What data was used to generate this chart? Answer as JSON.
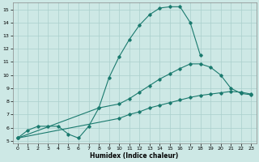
{
  "xlabel": "Humidex (Indice chaleur)",
  "bg_color": "#cde8e5",
  "grid_color": "#aacfcc",
  "line_color": "#1a7a6e",
  "xlim": [
    -0.5,
    23.5
  ],
  "ylim": [
    4.8,
    15.5
  ],
  "xticks": [
    0,
    1,
    2,
    3,
    4,
    5,
    6,
    7,
    8,
    9,
    10,
    11,
    12,
    13,
    14,
    15,
    16,
    17,
    18,
    19,
    20,
    21,
    22,
    23
  ],
  "yticks": [
    5,
    6,
    7,
    8,
    9,
    10,
    11,
    12,
    13,
    14,
    15
  ],
  "line1_x": [
    0,
    1,
    2,
    3,
    4,
    5,
    6,
    7,
    8,
    9,
    10,
    11,
    12,
    13,
    14,
    15,
    16,
    17,
    18
  ],
  "line1_y": [
    5.2,
    5.8,
    6.1,
    6.1,
    6.1,
    5.5,
    5.2,
    6.1,
    7.5,
    9.8,
    11.4,
    12.7,
    13.8,
    14.6,
    15.1,
    15.2,
    15.2,
    14.0,
    11.5
  ],
  "line2_x": [
    0,
    8,
    10,
    11,
    12,
    13,
    14,
    15,
    16,
    17,
    18,
    19,
    20,
    21,
    22,
    23
  ],
  "line2_y": [
    5.2,
    7.5,
    7.8,
    8.2,
    8.7,
    9.2,
    9.7,
    10.1,
    10.5,
    10.85,
    10.85,
    10.6,
    10.0,
    9.0,
    8.6,
    8.5
  ],
  "line3_x": [
    0,
    10,
    11,
    12,
    13,
    14,
    15,
    16,
    17,
    18,
    19,
    20,
    21,
    22,
    23
  ],
  "line3_y": [
    5.2,
    6.7,
    7.0,
    7.2,
    7.5,
    7.7,
    7.9,
    8.1,
    8.3,
    8.45,
    8.55,
    8.65,
    8.75,
    8.7,
    8.55
  ],
  "figsize": [
    3.2,
    2.0
  ],
  "dpi": 100
}
